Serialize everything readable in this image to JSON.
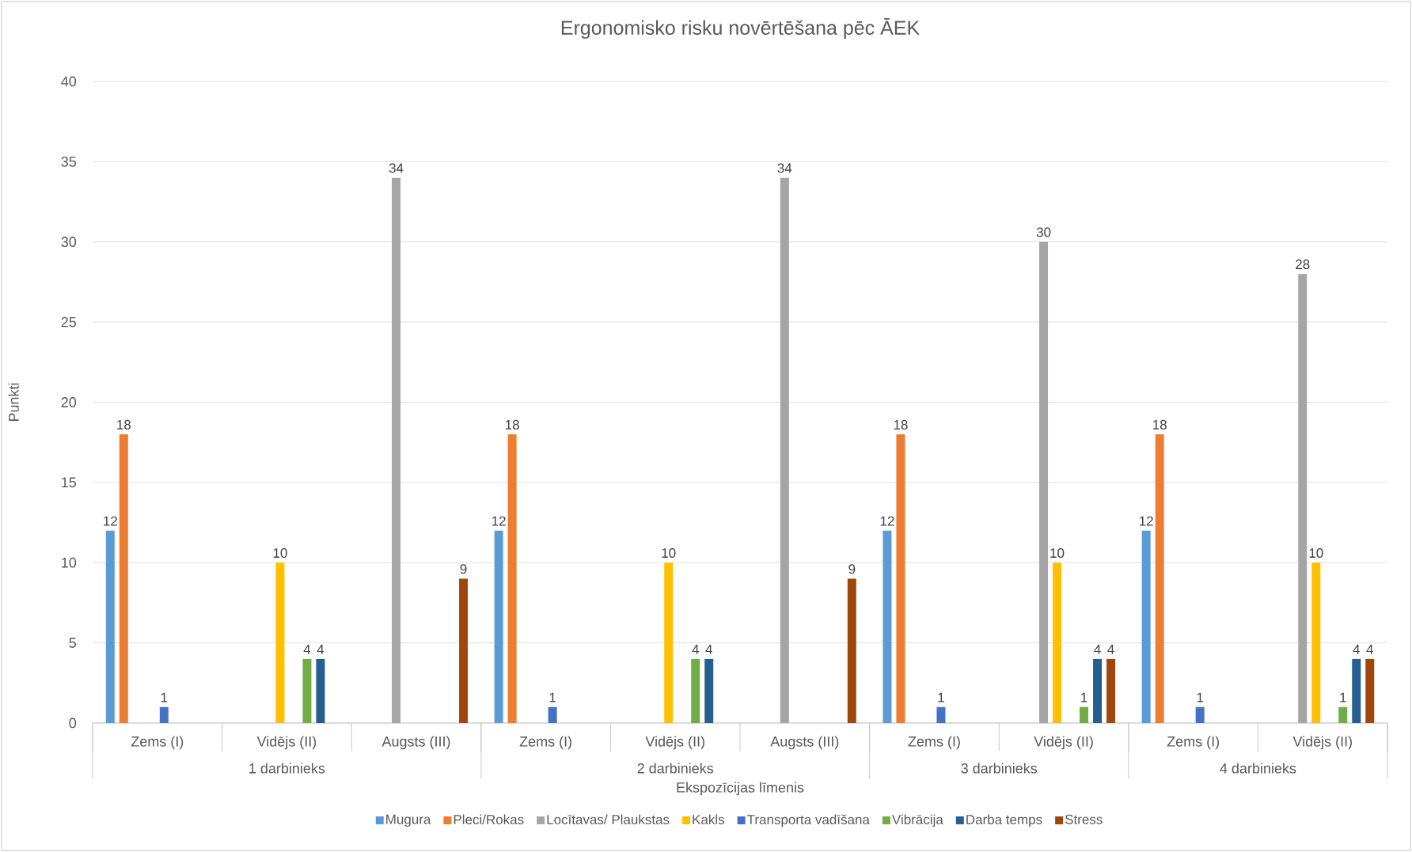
{
  "chart_data": {
    "type": "bar",
    "title": "Ergonomisko risku novērtēšana pēc ĀEK",
    "xlabel": "Ekspozīcijas līmenis",
    "ylabel": "Punkti",
    "categories": [
      "Zems (I)",
      "Vidējs (II)",
      "Augsts (III)",
      "Zems (I)",
      "Vidējs (II)",
      "Augsts (III)",
      "Zems (I)",
      "Vidējs (II)",
      "Zems (I)",
      "Vidējs (II)"
    ],
    "annotations": [
      "1 darbinieks",
      "2 darbinieks",
      "3 darbinieks",
      "4 darbinieks"
    ],
    "series": [
      {
        "name": "Mugura",
        "color": "#5b9bd5",
        "values": [
          12,
          null,
          null,
          12,
          null,
          null,
          12,
          null,
          12,
          null
        ]
      },
      {
        "name": "Pleci/Rokas",
        "color": "#ed7d31",
        "values": [
          18,
          null,
          null,
          18,
          null,
          null,
          18,
          null,
          18,
          null
        ]
      },
      {
        "name": "Locītavas/ Plaukstas",
        "color": "#a5a5a5",
        "values": [
          null,
          null,
          34,
          null,
          null,
          34,
          null,
          30,
          null,
          28
        ]
      },
      {
        "name": "Kakls",
        "color": "#ffc000",
        "values": [
          null,
          10,
          null,
          null,
          10,
          null,
          null,
          10,
          null,
          10
        ]
      },
      {
        "name": "Transporta vadīšana",
        "color": "#4472c4",
        "values": [
          1,
          null,
          null,
          1,
          null,
          null,
          1,
          null,
          1,
          null
        ]
      },
      {
        "name": "Vibrācija",
        "color": "#70ad47",
        "values": [
          null,
          4,
          null,
          null,
          4,
          null,
          null,
          1,
          null,
          1
        ]
      },
      {
        "name": "Darba temps",
        "color": "#255e91",
        "values": [
          null,
          4,
          null,
          null,
          4,
          null,
          null,
          4,
          null,
          4
        ]
      },
      {
        "name": "Stress",
        "color": "#9e480e",
        "values": [
          null,
          null,
          9,
          null,
          null,
          9,
          null,
          4,
          null,
          4
        ]
      }
    ],
    "ylim": [
      0,
      40
    ],
    "yticks": [
      0,
      5,
      10,
      15,
      20,
      25,
      30,
      35,
      40
    ],
    "grid": "y",
    "legend": "bottom",
    "data_labels": true
  }
}
